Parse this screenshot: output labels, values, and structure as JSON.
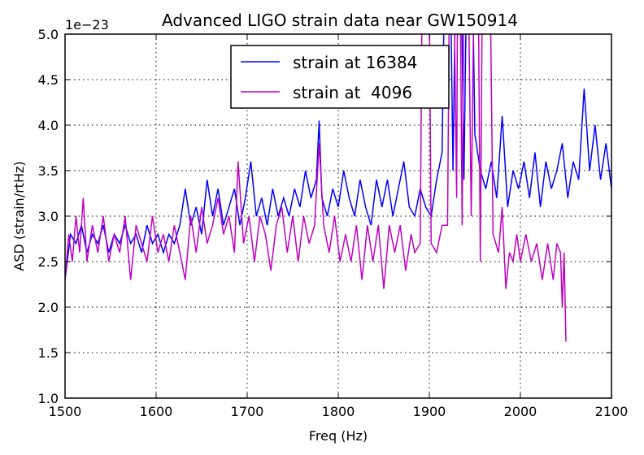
{
  "chart_data": {
    "type": "line",
    "title": "Advanced LIGO strain data near GW150914",
    "xlabel": "Freq (Hz)",
    "ylabel": "ASD (strain/rtHz)",
    "y_offset_label": "1e−23",
    "xlim": [
      1500,
      2100
    ],
    "ylim": [
      1.0,
      5.0
    ],
    "xticks": [
      "1500",
      "1600",
      "1700",
      "1800",
      "1900",
      "2000",
      "2100"
    ],
    "yticks": [
      "1.0",
      "1.5",
      "2.0",
      "2.5",
      "3.0",
      "3.5",
      "4.0",
      "4.5",
      "5.0"
    ],
    "grid": true,
    "legend_position": "top-center",
    "series": [
      {
        "name": "strain at 16384",
        "color": "#0000ff",
        "points": [
          [
            1500,
            2.3
          ],
          [
            1506,
            2.8
          ],
          [
            1512,
            2.7
          ],
          [
            1518,
            2.9
          ],
          [
            1524,
            2.6
          ],
          [
            1530,
            2.8
          ],
          [
            1536,
            2.7
          ],
          [
            1542,
            2.9
          ],
          [
            1548,
            2.6
          ],
          [
            1554,
            2.8
          ],
          [
            1560,
            2.7
          ],
          [
            1566,
            2.9
          ],
          [
            1572,
            2.7
          ],
          [
            1578,
            2.8
          ],
          [
            1584,
            2.6
          ],
          [
            1590,
            2.9
          ],
          [
            1596,
            2.7
          ],
          [
            1602,
            2.8
          ],
          [
            1608,
            2.6
          ],
          [
            1614,
            2.8
          ],
          [
            1620,
            2.7
          ],
          [
            1626,
            2.9
          ],
          [
            1632,
            3.3
          ],
          [
            1638,
            2.9
          ],
          [
            1644,
            3.1
          ],
          [
            1650,
            2.8
          ],
          [
            1656,
            3.4
          ],
          [
            1662,
            3.0
          ],
          [
            1668,
            3.3
          ],
          [
            1674,
            2.9
          ],
          [
            1680,
            3.1
          ],
          [
            1686,
            3.3
          ],
          [
            1692,
            2.9
          ],
          [
            1698,
            3.2
          ],
          [
            1704,
            3.6
          ],
          [
            1710,
            3.0
          ],
          [
            1716,
            3.2
          ],
          [
            1722,
            2.9
          ],
          [
            1728,
            3.3
          ],
          [
            1734,
            3.0
          ],
          [
            1740,
            3.2
          ],
          [
            1746,
            3.0
          ],
          [
            1752,
            3.3
          ],
          [
            1758,
            3.1
          ],
          [
            1764,
            3.5
          ],
          [
            1770,
            3.2
          ],
          [
            1776,
            3.4
          ],
          [
            1779,
            4.05
          ],
          [
            1782,
            3.2
          ],
          [
            1788,
            3.0
          ],
          [
            1794,
            3.3
          ],
          [
            1800,
            3.1
          ],
          [
            1806,
            3.5
          ],
          [
            1812,
            3.2
          ],
          [
            1818,
            3.0
          ],
          [
            1824,
            3.4
          ],
          [
            1830,
            3.1
          ],
          [
            1836,
            2.9
          ],
          [
            1842,
            3.4
          ],
          [
            1848,
            3.1
          ],
          [
            1854,
            3.4
          ],
          [
            1860,
            3.0
          ],
          [
            1866,
            3.3
          ],
          [
            1872,
            3.6
          ],
          [
            1878,
            3.1
          ],
          [
            1884,
            3.0
          ],
          [
            1890,
            3.3
          ],
          [
            1896,
            3.1
          ],
          [
            1902,
            3.0
          ],
          [
            1908,
            3.4
          ],
          [
            1914,
            3.7
          ],
          [
            1920,
            8.0
          ],
          [
            1926,
            3.5
          ],
          [
            1932,
            8.0
          ],
          [
            1938,
            3.4
          ],
          [
            1944,
            8.0
          ],
          [
            1950,
            3.9
          ],
          [
            1956,
            3.5
          ],
          [
            1962,
            3.3
          ],
          [
            1968,
            3.6
          ],
          [
            1974,
            3.2
          ],
          [
            1980,
            4.1
          ],
          [
            1986,
            3.1
          ],
          [
            1992,
            3.5
          ],
          [
            1998,
            3.3
          ],
          [
            2004,
            3.6
          ],
          [
            2010,
            3.2
          ],
          [
            2016,
            3.7
          ],
          [
            2022,
            3.1
          ],
          [
            2028,
            3.6
          ],
          [
            2034,
            3.3
          ],
          [
            2040,
            3.5
          ],
          [
            2046,
            3.8
          ],
          [
            2052,
            3.2
          ],
          [
            2058,
            3.6
          ],
          [
            2064,
            3.4
          ],
          [
            2070,
            4.4
          ],
          [
            2076,
            3.5
          ],
          [
            2082,
            4.0
          ],
          [
            2088,
            3.4
          ],
          [
            2094,
            3.8
          ],
          [
            2100,
            3.3
          ]
        ]
      },
      {
        "name": "strain at  4096",
        "color": "#bf00bf",
        "points": [
          [
            1500,
            2.3
          ],
          [
            1504,
            2.8
          ],
          [
            1508,
            2.5
          ],
          [
            1512,
            3.0
          ],
          [
            1516,
            2.6
          ],
          [
            1520,
            3.2
          ],
          [
            1524,
            2.5
          ],
          [
            1530,
            2.9
          ],
          [
            1536,
            2.6
          ],
          [
            1542,
            3.0
          ],
          [
            1548,
            2.5
          ],
          [
            1554,
            2.8
          ],
          [
            1560,
            2.6
          ],
          [
            1566,
            3.0
          ],
          [
            1572,
            2.3
          ],
          [
            1578,
            2.9
          ],
          [
            1584,
            2.7
          ],
          [
            1590,
            2.5
          ],
          [
            1596,
            3.0
          ],
          [
            1602,
            2.6
          ],
          [
            1608,
            2.8
          ],
          [
            1614,
            2.5
          ],
          [
            1620,
            2.9
          ],
          [
            1626,
            2.6
          ],
          [
            1632,
            2.3
          ],
          [
            1638,
            3.0
          ],
          [
            1644,
            2.6
          ],
          [
            1650,
            3.1
          ],
          [
            1656,
            2.7
          ],
          [
            1662,
            2.9
          ],
          [
            1668,
            3.2
          ],
          [
            1674,
            2.8
          ],
          [
            1680,
            3.0
          ],
          [
            1686,
            2.6
          ],
          [
            1690,
            3.6
          ],
          [
            1696,
            2.7
          ],
          [
            1702,
            3.0
          ],
          [
            1708,
            2.5
          ],
          [
            1714,
            3.0
          ],
          [
            1720,
            2.8
          ],
          [
            1726,
            2.4
          ],
          [
            1732,
            2.9
          ],
          [
            1738,
            3.1
          ],
          [
            1744,
            2.6
          ],
          [
            1750,
            3.0
          ],
          [
            1756,
            2.5
          ],
          [
            1762,
            3.0
          ],
          [
            1768,
            2.7
          ],
          [
            1774,
            2.9
          ],
          [
            1779,
            3.8
          ],
          [
            1784,
            2.9
          ],
          [
            1790,
            2.6
          ],
          [
            1796,
            3.0
          ],
          [
            1802,
            2.5
          ],
          [
            1808,
            2.8
          ],
          [
            1814,
            2.5
          ],
          [
            1820,
            2.9
          ],
          [
            1826,
            2.3
          ],
          [
            1832,
            2.9
          ],
          [
            1838,
            2.5
          ],
          [
            1844,
            2.9
          ],
          [
            1850,
            2.2
          ],
          [
            1856,
            2.9
          ],
          [
            1862,
            2.6
          ],
          [
            1868,
            2.9
          ],
          [
            1874,
            2.4
          ],
          [
            1880,
            2.8
          ],
          [
            1884,
            2.6
          ],
          [
            1890,
            2.7
          ],
          [
            1894,
            8.0
          ],
          [
            1898,
            8.0
          ],
          [
            1902,
            2.7
          ],
          [
            1908,
            2.6
          ],
          [
            1914,
            2.9
          ],
          [
            1920,
            2.9
          ],
          [
            1924,
            8.0
          ],
          [
            1930,
            3.2
          ],
          [
            1932,
            8.0
          ],
          [
            1936,
            2.9
          ],
          [
            1940,
            8.0
          ],
          [
            1946,
            3.0
          ],
          [
            1952,
            8.0
          ],
          [
            1956,
            2.5
          ],
          [
            1960,
            8.0
          ],
          [
            1964,
            8.0
          ],
          [
            1970,
            2.8
          ],
          [
            1976,
            2.6
          ],
          [
            1980,
            3.1
          ],
          [
            1984,
            2.2
          ],
          [
            1988,
            2.6
          ],
          [
            1992,
            2.5
          ],
          [
            1996,
            2.8
          ],
          [
            2000,
            2.5
          ],
          [
            2006,
            2.8
          ],
          [
            2012,
            2.5
          ],
          [
            2018,
            2.7
          ],
          [
            2024,
            2.3
          ],
          [
            2030,
            2.7
          ],
          [
            2036,
            2.3
          ],
          [
            2040,
            2.7
          ],
          [
            2044,
            2.6
          ],
          [
            2046,
            2.0
          ],
          [
            2048,
            2.6
          ],
          [
            2050,
            1.62
          ]
        ]
      }
    ]
  }
}
